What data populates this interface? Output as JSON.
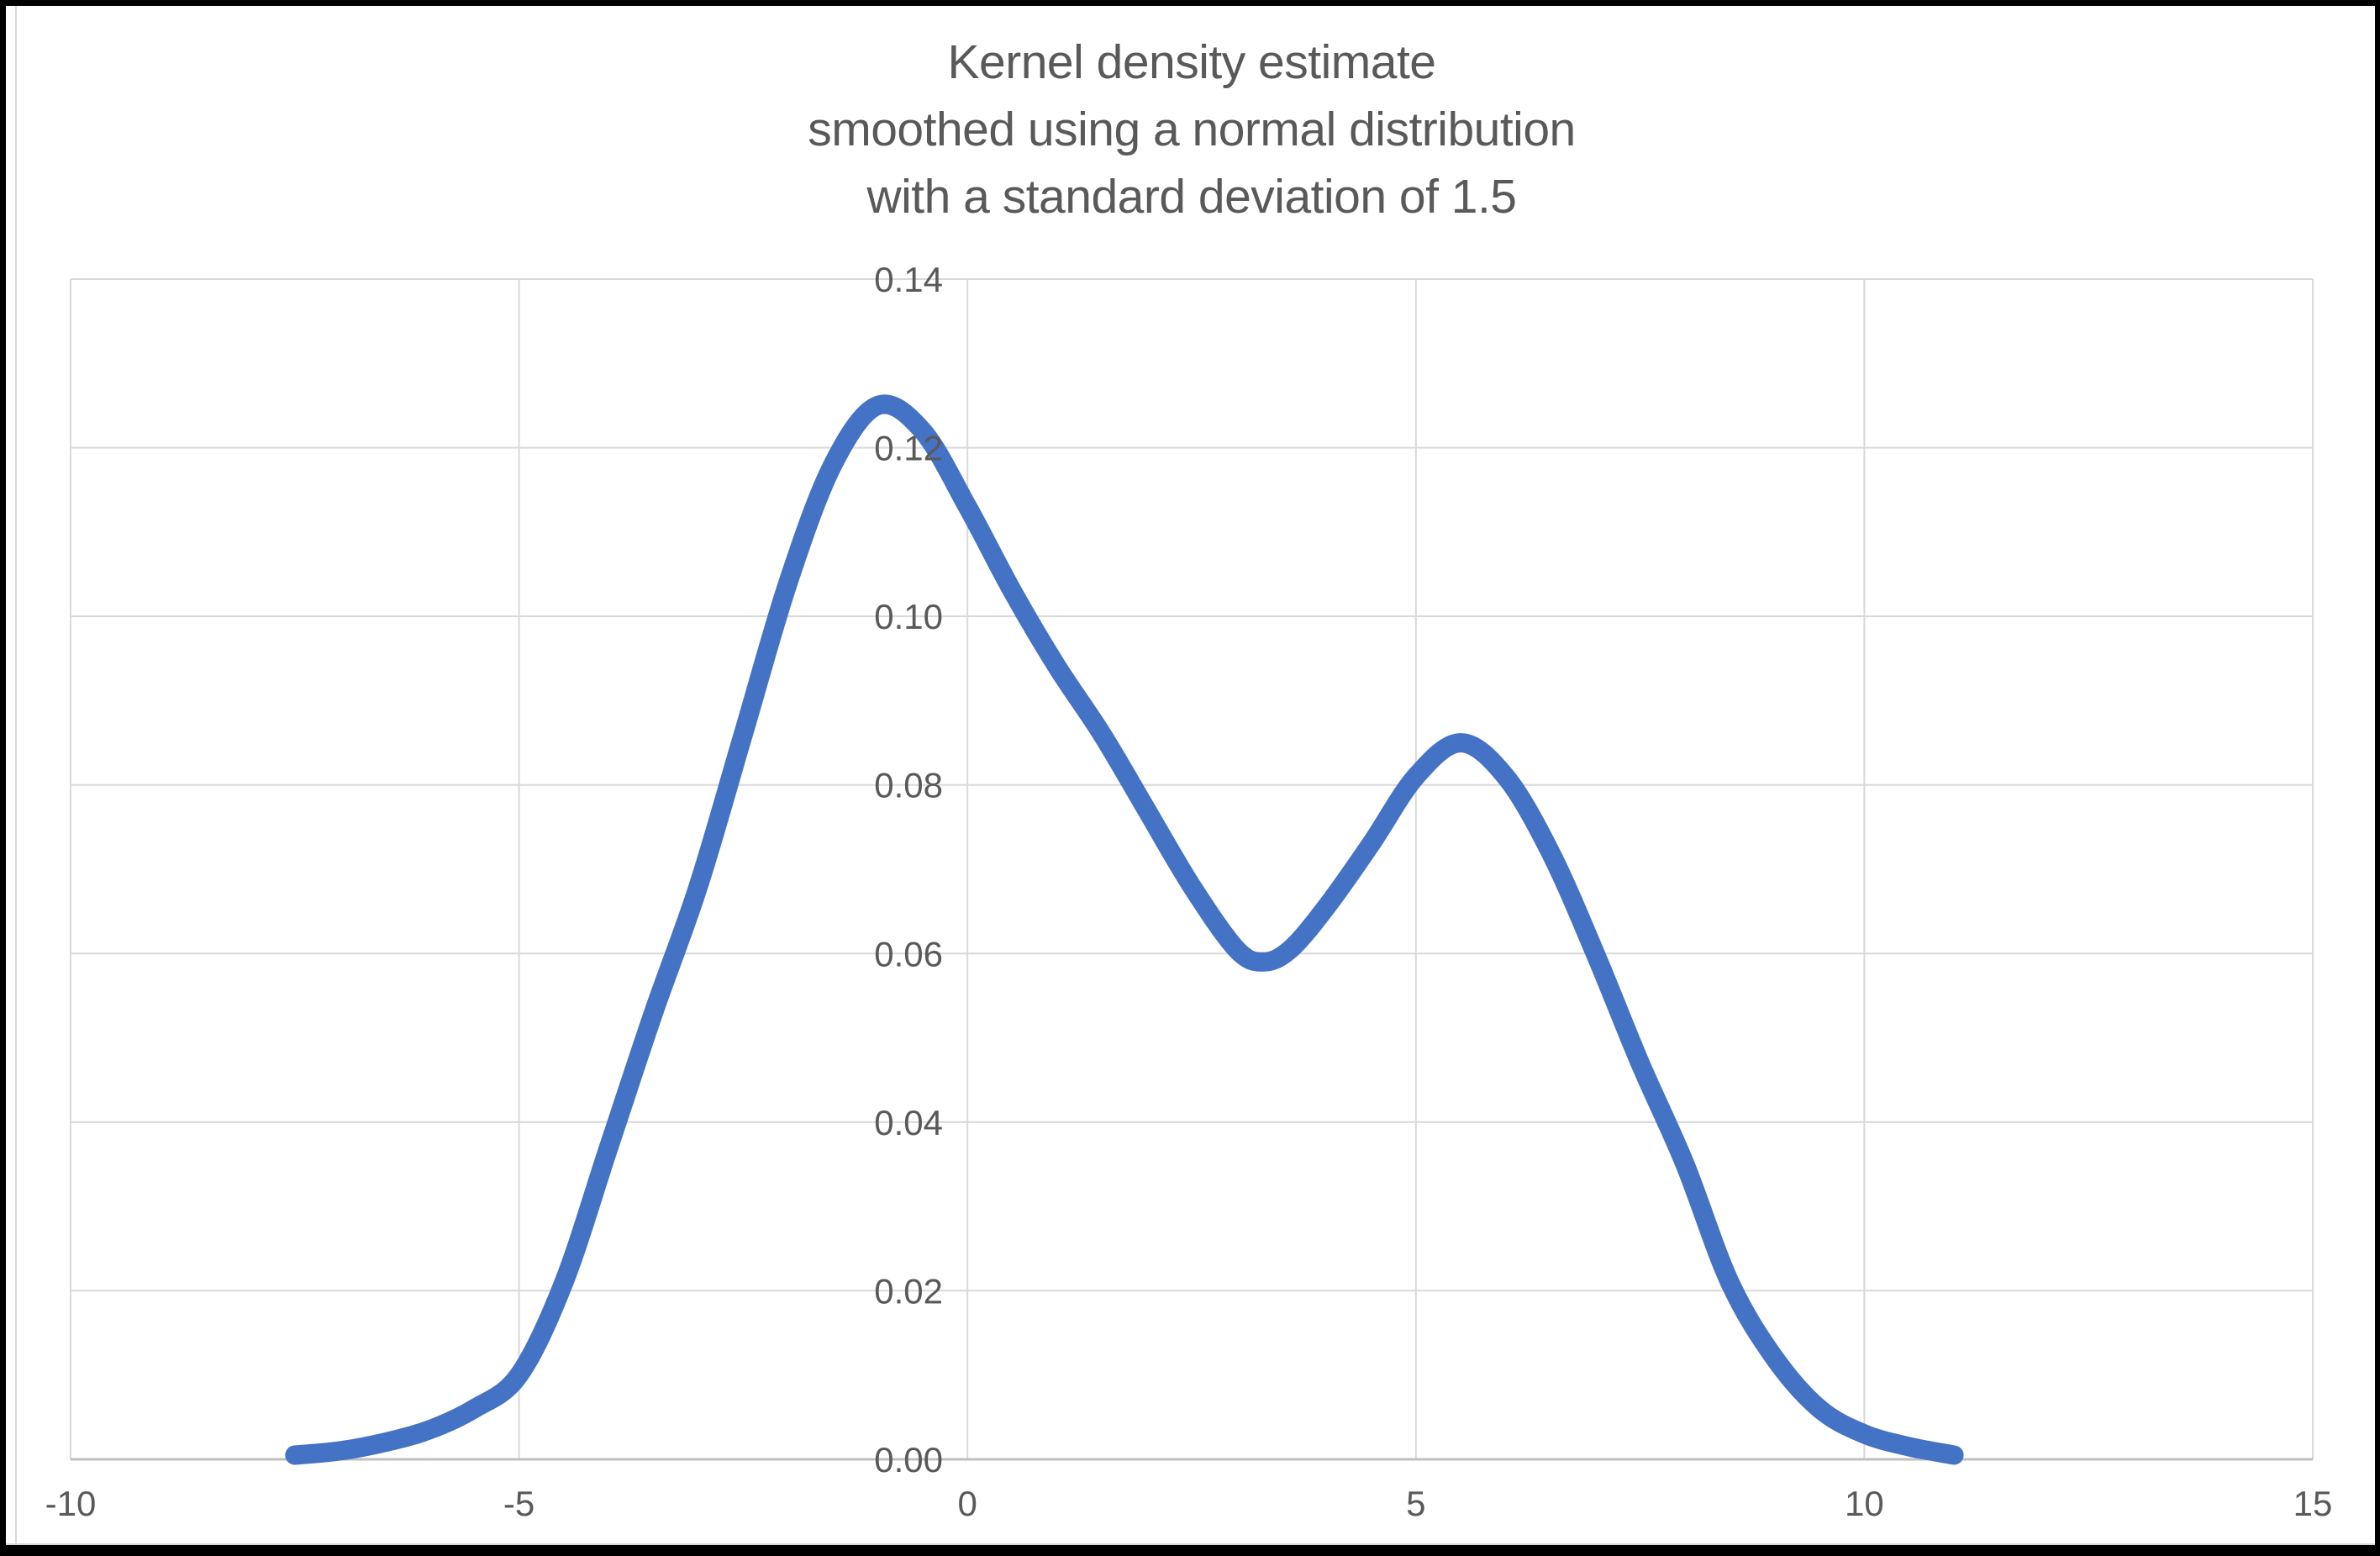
{
  "window": {
    "background": "#ffffff",
    "frame_color": "#000000",
    "inner_edge_color": "#d9d9d9"
  },
  "chart_data": {
    "type": "line",
    "title": "Kernel density estimate smoothed using a normal distribution with a standard deviation of 1.5",
    "title_lines": [
      "Kernel density estimate",
      "smoothed using a normal distribution",
      "with a standard deviation of 1.5"
    ],
    "xlabel": "",
    "ylabel": "",
    "xlim": [
      -10,
      15
    ],
    "ylim": [
      0,
      0.14
    ],
    "grid": true,
    "legend": "none",
    "x_ticks": [
      {
        "label": "-10",
        "value": -10
      },
      {
        "label": "-5",
        "value": -5
      },
      {
        "label": "0",
        "value": 0
      },
      {
        "label": "5",
        "value": 5
      },
      {
        "label": "10",
        "value": 10
      },
      {
        "label": "15",
        "value": 15
      }
    ],
    "y_ticks": [
      {
        "label": "0.00",
        "value": 0.0
      },
      {
        "label": "0.02",
        "value": 0.02
      },
      {
        "label": "0.04",
        "value": 0.04
      },
      {
        "label": "0.06",
        "value": 0.06
      },
      {
        "label": "0.08",
        "value": 0.08
      },
      {
        "label": "0.10",
        "value": 0.1
      },
      {
        "label": "0.12",
        "value": 0.12
      },
      {
        "label": "0.14",
        "value": 0.14
      }
    ],
    "series": [
      {
        "name": "kde-curve",
        "color": "#4472c4",
        "stroke_width": 23,
        "points": [
          [
            -7.5,
            0.0005
          ],
          [
            -7.0,
            0.001
          ],
          [
            -6.5,
            0.002
          ],
          [
            -6.0,
            0.0035
          ],
          [
            -5.5,
            0.006
          ],
          [
            -5.0,
            0.01
          ],
          [
            -4.5,
            0.021
          ],
          [
            -4.0,
            0.037
          ],
          [
            -3.5,
            0.053
          ],
          [
            -3.0,
            0.068
          ],
          [
            -2.5,
            0.086
          ],
          [
            -2.0,
            0.104
          ],
          [
            -1.5,
            0.118
          ],
          [
            -1.0,
            0.125
          ],
          [
            -0.5,
            0.122
          ],
          [
            0.0,
            0.113
          ],
          [
            0.5,
            0.103
          ],
          [
            1.0,
            0.094
          ],
          [
            1.5,
            0.086
          ],
          [
            2.0,
            0.077
          ],
          [
            2.5,
            0.068
          ],
          [
            3.0,
            0.0605
          ],
          [
            3.3,
            0.059
          ],
          [
            3.6,
            0.0605
          ],
          [
            4.0,
            0.0655
          ],
          [
            4.5,
            0.073
          ],
          [
            5.0,
            0.081
          ],
          [
            5.5,
            0.085
          ],
          [
            6.0,
            0.081
          ],
          [
            6.5,
            0.072
          ],
          [
            7.0,
            0.06
          ],
          [
            7.5,
            0.047
          ],
          [
            8.0,
            0.035
          ],
          [
            8.5,
            0.021
          ],
          [
            9.0,
            0.012
          ],
          [
            9.5,
            0.006
          ],
          [
            10.0,
            0.003
          ],
          [
            10.5,
            0.0015
          ],
          [
            11.0,
            0.0005
          ]
        ]
      }
    ],
    "styles": {
      "gridline_color": "#d9d9d9",
      "axis_color": "#bfbfbf",
      "label_color": "#595959",
      "title_color": "#595959"
    }
  }
}
